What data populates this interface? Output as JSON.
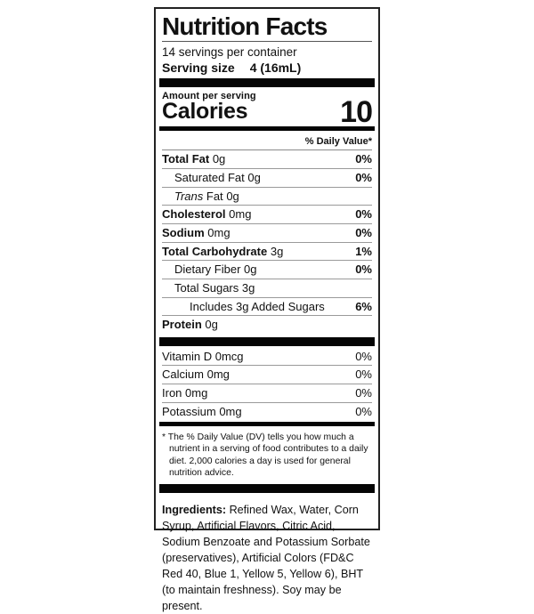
{
  "label": {
    "title": "Nutrition Facts",
    "servings_per_container": "14 servings per container",
    "serving_size_label": "Serving size",
    "serving_size_value": "4 (16mL)",
    "amount_per_serving": "Amount per serving",
    "calories_label": "Calories",
    "calories_value": "10",
    "daily_value_header": "% Daily Value*",
    "rows": [
      {
        "name": "Total Fat",
        "amount": "0g",
        "dv": "0%"
      },
      {
        "name": "Saturated Fat",
        "amount": "0g",
        "dv": "0%"
      },
      {
        "name_italic": "Trans",
        "name_rest": "Fat",
        "amount": "0g",
        "dv": ""
      },
      {
        "name": "Cholesterol",
        "amount": "0mg",
        "dv": "0%"
      },
      {
        "name": "Sodium",
        "amount": "0mg",
        "dv": "0%"
      },
      {
        "name": "Total Carbohydrate",
        "amount": "3g",
        "dv": "1%"
      },
      {
        "name": "Dietary Fiber",
        "amount": "0g",
        "dv": "0%"
      },
      {
        "name": "Total Sugars",
        "amount": "3g",
        "dv": ""
      },
      {
        "name": "Includes 3g Added Sugars",
        "amount": "",
        "dv": "6%"
      },
      {
        "name": "Protein",
        "amount": "0g",
        "dv": ""
      }
    ],
    "vitamins": [
      {
        "name": "Vitamin D",
        "amount": "0mcg",
        "dv": "0%"
      },
      {
        "name": "Calcium",
        "amount": "0mg",
        "dv": "0%"
      },
      {
        "name": "Iron",
        "amount": "0mg",
        "dv": "0%"
      },
      {
        "name": "Potassium",
        "amount": "0mg",
        "dv": "0%"
      }
    ],
    "footnote_marker": "*",
    "footnote_text": "The % Daily Value (DV) tells you how much a nutrient in a serving of food contributes to a daily diet. 2,000 calories a day is used for general nutrition advice.",
    "ingredients_label": "Ingredients:",
    "ingredients_text": "Refined Wax, Water, Corn Syrup, Artificial Flavors, Citric Acid, Sodium Benzoate and Potassium Sorbate (preservatives), Artificial Colors (FD&C Red 40, Blue 1, Yellow 5, Yellow 6), BHT (to maintain freshness). Soy may be present."
  }
}
